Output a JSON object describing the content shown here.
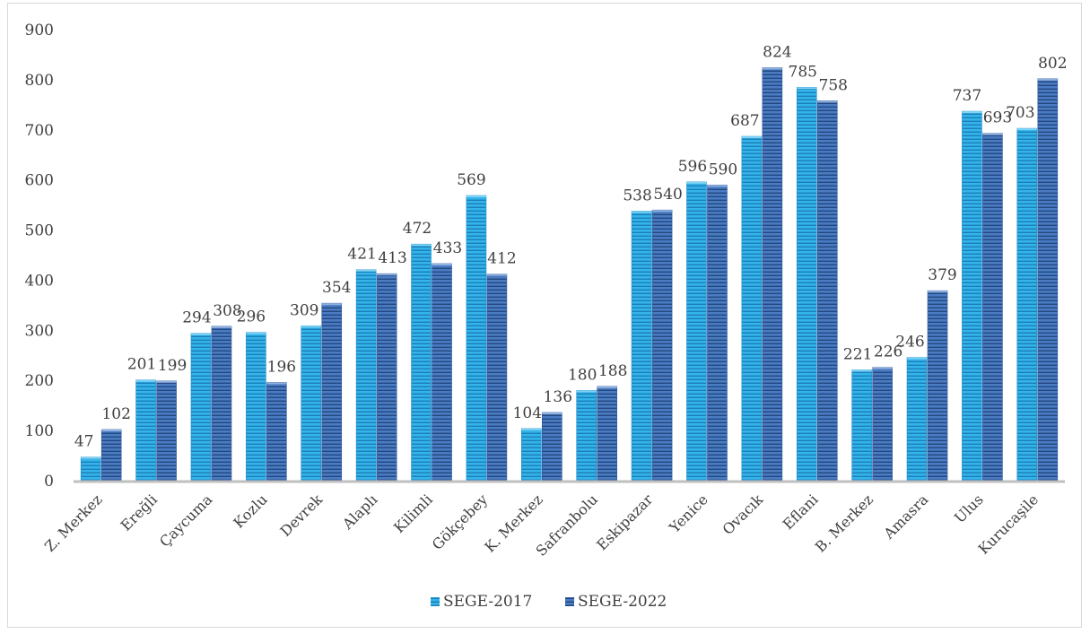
{
  "chart_data": {
    "type": "bar",
    "title": "",
    "xlabel": "",
    "ylabel": "",
    "ylim": [
      0,
      900
    ],
    "yticks": [
      0,
      100,
      200,
      300,
      400,
      500,
      600,
      700,
      800,
      900
    ],
    "grid": false,
    "legend_position": "bottom",
    "categories": [
      "Z. Merkez",
      "Ereğli",
      "Çaycuma",
      "Kozlu",
      "Devrek",
      "Alaplı",
      "Kilimli",
      "Gökçebey",
      "K. Merkez",
      "Safranbolu",
      "Eskipazar",
      "Yenice",
      "Ovacık",
      "Eflani",
      "B. Merkez",
      "Amasra",
      "Ulus",
      "Kurucaşile"
    ],
    "series": [
      {
        "name": "SEGE-2017",
        "color": "#2e9fd8",
        "values": [
          47,
          201,
          294,
          296,
          309,
          421,
          472,
          569,
          104,
          180,
          538,
          596,
          687,
          785,
          221,
          246,
          737,
          703
        ]
      },
      {
        "name": "SEGE-2022",
        "color": "#3f6fb5",
        "values": [
          102,
          199,
          308,
          196,
          354,
          413,
          433,
          412,
          136,
          188,
          540,
          590,
          824,
          758,
          226,
          379,
          693,
          802
        ]
      }
    ]
  }
}
